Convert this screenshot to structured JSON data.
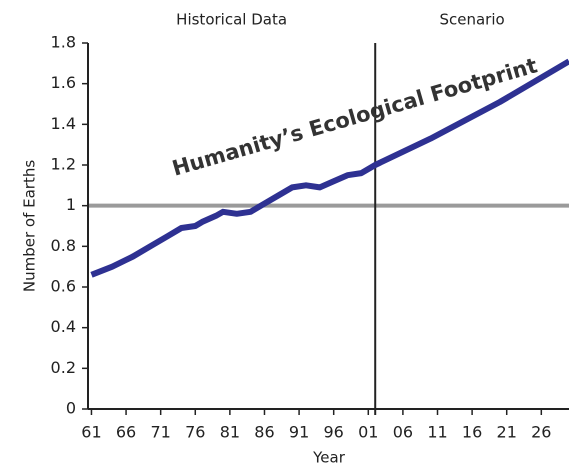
{
  "chart_data": {
    "type": "line",
    "x_label": "Year",
    "y_label": "Number of Earths",
    "regions": [
      {
        "label": "Historical Data",
        "from": 1960.5,
        "to": 2002
      },
      {
        "label": "Scenario",
        "from": 2002,
        "to": 2030
      }
    ],
    "divider_x": 2002,
    "reference_y": 1,
    "reference_color": "#9a9a9a",
    "x": [
      1961,
      1964,
      1967,
      1970,
      1972,
      1974,
      1976,
      1977,
      1979,
      1980,
      1982,
      1984,
      1986,
      1988,
      1990,
      1992,
      1994,
      1996,
      1998,
      2000,
      2002,
      2010,
      2020,
      2030
    ],
    "series": [
      {
        "name": "Humanity’s Ecological Footprint",
        "color": "#2e3192",
        "values": [
          0.66,
          0.7,
          0.75,
          0.81,
          0.85,
          0.89,
          0.9,
          0.92,
          0.95,
          0.97,
          0.96,
          0.97,
          1.01,
          1.05,
          1.09,
          1.1,
          1.09,
          1.12,
          1.15,
          1.16,
          1.2,
          1.33,
          1.51,
          1.71
        ]
      }
    ],
    "xlim": [
      1960.5,
      2030
    ],
    "xticks": [
      {
        "value": 1961,
        "label": "61"
      },
      {
        "value": 1966,
        "label": "66"
      },
      {
        "value": 1971,
        "label": "71"
      },
      {
        "value": 1976,
        "label": "76"
      },
      {
        "value": 1981,
        "label": "81"
      },
      {
        "value": 1986,
        "label": "86"
      },
      {
        "value": 1991,
        "label": "91"
      },
      {
        "value": 1996,
        "label": "96"
      },
      {
        "value": 2001,
        "label": "01"
      },
      {
        "value": 2006,
        "label": "06"
      },
      {
        "value": 2011,
        "label": "11"
      },
      {
        "value": 2016,
        "label": "16"
      },
      {
        "value": 2021,
        "label": "21"
      },
      {
        "value": 2026,
        "label": "26"
      }
    ],
    "ylim": [
      0,
      1.8
    ],
    "yticks": [
      0,
      0.2,
      0.4,
      0.6,
      0.8,
      1,
      1.2,
      1.4,
      1.6,
      1.8
    ]
  }
}
